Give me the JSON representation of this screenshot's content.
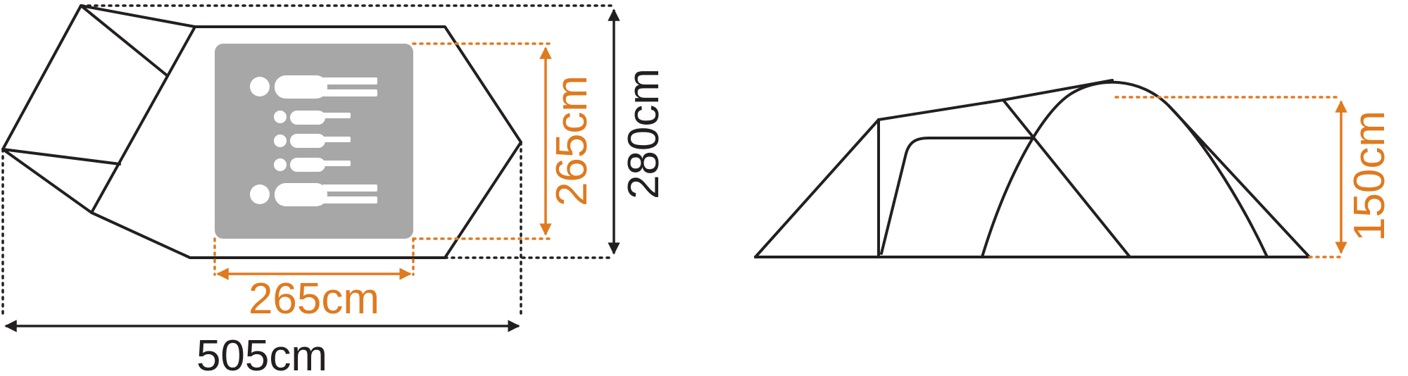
{
  "colors": {
    "line": "#231f20",
    "accent": "#e07a1f",
    "floor_panel": "#a7a7a7"
  },
  "top_view": {
    "total_length_label": "505cm",
    "total_width_label": "280cm",
    "inner_length_label": "265cm",
    "inner_width_label": "265cm",
    "occupancy_icon": "sleeping-persons-icon"
  },
  "side_view": {
    "height_label": "150cm"
  }
}
